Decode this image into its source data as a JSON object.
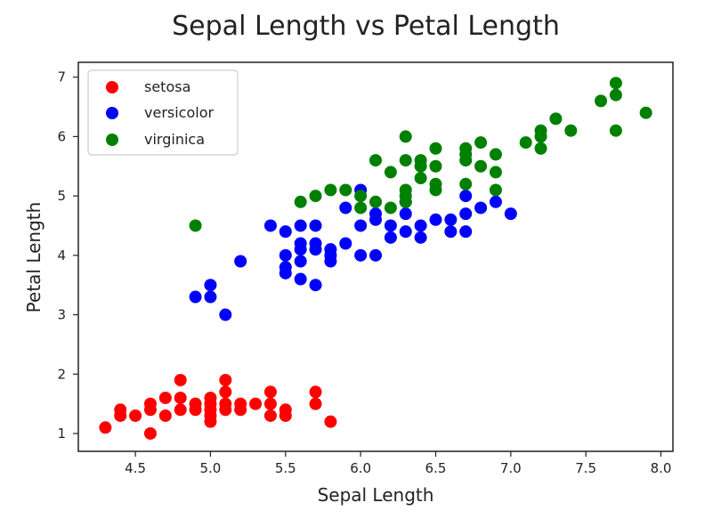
{
  "chart_data": {
    "type": "scatter",
    "title": "Sepal Length vs Petal Length",
    "xlabel": "Sepal Length",
    "ylabel": "Petal Length",
    "xlim": [
      4.12,
      8.08
    ],
    "ylim": [
      0.7,
      7.25
    ],
    "xticks": [
      "4.5",
      "5.0",
      "5.5",
      "6.0",
      "6.5",
      "7.0",
      "7.5",
      "8.0"
    ],
    "yticks": [
      "1",
      "2",
      "3",
      "4",
      "5",
      "6",
      "7"
    ],
    "grid": false,
    "legend_position": "top-left",
    "series": [
      {
        "name": "setosa",
        "color": "#ff0000",
        "points": [
          [
            4.3,
            1.1
          ],
          [
            4.4,
            1.3
          ],
          [
            4.4,
            1.4
          ],
          [
            4.5,
            1.3
          ],
          [
            4.6,
            1.0
          ],
          [
            4.6,
            1.4
          ],
          [
            4.6,
            1.5
          ],
          [
            4.7,
            1.3
          ],
          [
            4.7,
            1.6
          ],
          [
            4.8,
            1.4
          ],
          [
            4.8,
            1.6
          ],
          [
            4.8,
            1.9
          ],
          [
            4.9,
            1.4
          ],
          [
            4.9,
            1.5
          ],
          [
            5.0,
            1.2
          ],
          [
            5.0,
            1.3
          ],
          [
            5.0,
            1.4
          ],
          [
            5.0,
            1.5
          ],
          [
            5.0,
            1.6
          ],
          [
            5.1,
            1.4
          ],
          [
            5.1,
            1.5
          ],
          [
            5.1,
            1.7
          ],
          [
            5.1,
            1.9
          ],
          [
            5.2,
            1.4
          ],
          [
            5.2,
            1.5
          ],
          [
            5.3,
            1.5
          ],
          [
            5.4,
            1.3
          ],
          [
            5.4,
            1.5
          ],
          [
            5.4,
            1.7
          ],
          [
            5.5,
            1.3
          ],
          [
            5.5,
            1.4
          ],
          [
            5.7,
            1.5
          ],
          [
            5.7,
            1.7
          ],
          [
            5.8,
            1.2
          ]
        ]
      },
      {
        "name": "versicolor",
        "color": "#0000ff",
        "points": [
          [
            4.9,
            3.3
          ],
          [
            5.0,
            3.3
          ],
          [
            5.0,
            3.5
          ],
          [
            5.1,
            3.0
          ],
          [
            5.2,
            3.9
          ],
          [
            5.4,
            4.5
          ],
          [
            5.5,
            3.7
          ],
          [
            5.5,
            3.8
          ],
          [
            5.5,
            4.0
          ],
          [
            5.5,
            4.4
          ],
          [
            5.6,
            3.6
          ],
          [
            5.6,
            3.9
          ],
          [
            5.6,
            4.1
          ],
          [
            5.6,
            4.2
          ],
          [
            5.6,
            4.5
          ],
          [
            5.7,
            3.5
          ],
          [
            5.7,
            4.1
          ],
          [
            5.7,
            4.2
          ],
          [
            5.7,
            4.5
          ],
          [
            5.8,
            3.9
          ],
          [
            5.8,
            4.0
          ],
          [
            5.8,
            4.1
          ],
          [
            5.9,
            4.2
          ],
          [
            5.9,
            4.8
          ],
          [
            6.0,
            4.0
          ],
          [
            6.0,
            4.5
          ],
          [
            6.0,
            5.1
          ],
          [
            6.1,
            4.0
          ],
          [
            6.1,
            4.6
          ],
          [
            6.1,
            4.7
          ],
          [
            6.2,
            4.3
          ],
          [
            6.2,
            4.5
          ],
          [
            6.3,
            4.4
          ],
          [
            6.3,
            4.7
          ],
          [
            6.3,
            4.9
          ],
          [
            6.4,
            4.3
          ],
          [
            6.4,
            4.5
          ],
          [
            6.5,
            4.6
          ],
          [
            6.6,
            4.4
          ],
          [
            6.6,
            4.6
          ],
          [
            6.7,
            4.4
          ],
          [
            6.7,
            4.7
          ],
          [
            6.7,
            5.0
          ],
          [
            6.8,
            4.8
          ],
          [
            6.9,
            4.9
          ],
          [
            7.0,
            4.7
          ]
        ]
      },
      {
        "name": "virginica",
        "color": "#008000",
        "points": [
          [
            4.9,
            4.5
          ],
          [
            5.6,
            4.9
          ],
          [
            5.7,
            5.0
          ],
          [
            5.8,
            5.1
          ],
          [
            5.9,
            5.1
          ],
          [
            6.0,
            4.8
          ],
          [
            6.0,
            5.0
          ],
          [
            6.1,
            4.9
          ],
          [
            6.1,
            5.6
          ],
          [
            6.2,
            4.8
          ],
          [
            6.2,
            5.4
          ],
          [
            6.3,
            4.9
          ],
          [
            6.3,
            5.0
          ],
          [
            6.3,
            5.1
          ],
          [
            6.3,
            5.6
          ],
          [
            6.3,
            6.0
          ],
          [
            6.4,
            5.3
          ],
          [
            6.4,
            5.5
          ],
          [
            6.4,
            5.6
          ],
          [
            6.5,
            5.1
          ],
          [
            6.5,
            5.2
          ],
          [
            6.5,
            5.5
          ],
          [
            6.5,
            5.8
          ],
          [
            6.7,
            5.2
          ],
          [
            6.7,
            5.6
          ],
          [
            6.7,
            5.7
          ],
          [
            6.7,
            5.8
          ],
          [
            6.8,
            5.5
          ],
          [
            6.8,
            5.9
          ],
          [
            6.9,
            5.1
          ],
          [
            6.9,
            5.4
          ],
          [
            6.9,
            5.7
          ],
          [
            7.1,
            5.9
          ],
          [
            7.2,
            5.8
          ],
          [
            7.2,
            6.0
          ],
          [
            7.2,
            6.1
          ],
          [
            7.3,
            6.3
          ],
          [
            7.4,
            6.1
          ],
          [
            7.6,
            6.6
          ],
          [
            7.7,
            6.1
          ],
          [
            7.7,
            6.7
          ],
          [
            7.7,
            6.9
          ],
          [
            7.9,
            6.4
          ]
        ]
      }
    ]
  }
}
